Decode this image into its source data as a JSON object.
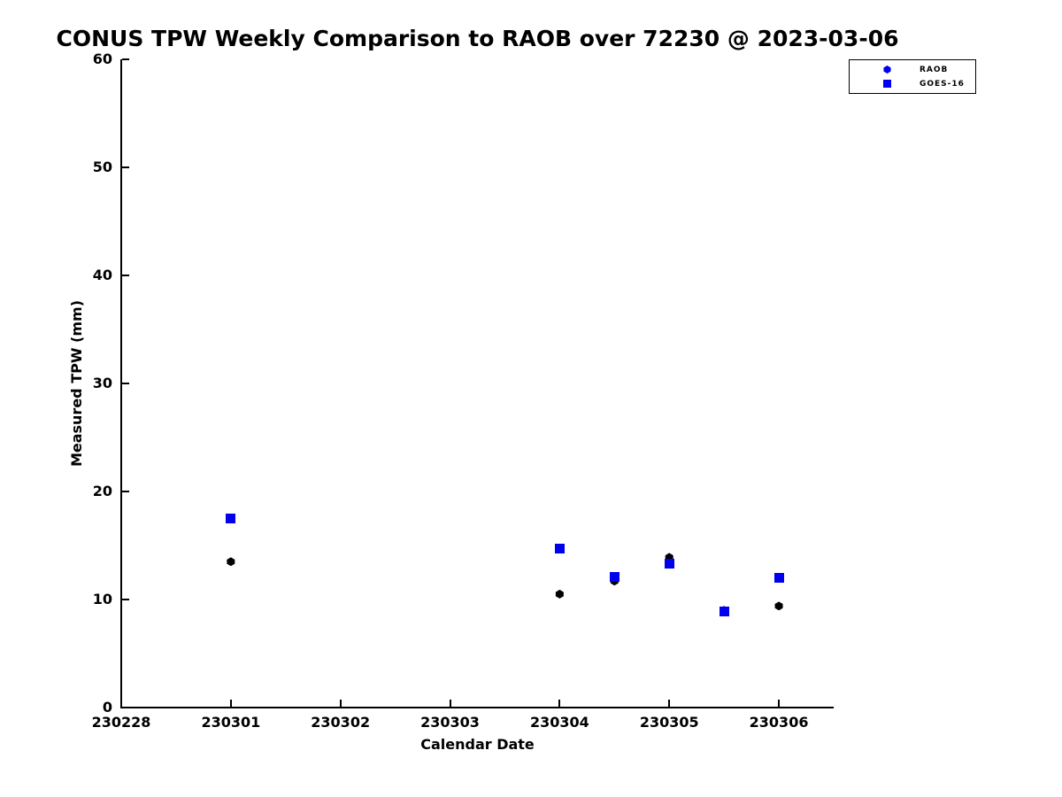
{
  "chart_data": {
    "type": "scatter",
    "title": "CONUS TPW Weekly Comparison to RAOB over 72230 @ 2023-03-06",
    "xlabel": "Calendar Date",
    "ylabel": "Measured TPW (mm)",
    "x_axis": {
      "tick_labels": [
        "230228",
        "230301",
        "230302",
        "230303",
        "230304",
        "230305",
        "230306"
      ],
      "tick_positions_days": [
        0,
        1,
        2,
        3,
        4,
        5,
        6
      ],
      "xlim_days": [
        0,
        6.5
      ]
    },
    "y_axis": {
      "tick_labels": [
        "0",
        "10",
        "20",
        "30",
        "40",
        "50",
        "60"
      ],
      "tick_values": [
        0,
        10,
        20,
        30,
        40,
        50,
        60
      ],
      "ylim": [
        0,
        60
      ]
    },
    "grid": "off",
    "series": [
      {
        "name": "RAOB",
        "marker": "hexagon",
        "color": "#000000",
        "points": [
          {
            "x_days": 1.0,
            "date": "230301",
            "y": 13.5
          },
          {
            "x_days": 4.0,
            "date": "230304",
            "y": 10.5
          },
          {
            "x_days": 4.5,
            "date": "230304.5",
            "y": 11.7
          },
          {
            "x_days": 5.0,
            "date": "230305",
            "y": 13.9
          },
          {
            "x_days": 5.5,
            "date": "230305.5",
            "y": 9.0
          },
          {
            "x_days": 6.0,
            "date": "230306",
            "y": 9.4
          }
        ]
      },
      {
        "name": "GOES-16",
        "marker": "square",
        "color": "#0000EE",
        "points": [
          {
            "x_days": 1.0,
            "date": "230301",
            "y": 17.5
          },
          {
            "x_days": 4.0,
            "date": "230304",
            "y": 14.7
          },
          {
            "x_days": 4.5,
            "date": "230304.5",
            "y": 12.1
          },
          {
            "x_days": 5.0,
            "date": "230305",
            "y": 13.3
          },
          {
            "x_days": 5.5,
            "date": "230305.5",
            "y": 8.9
          },
          {
            "x_days": 6.0,
            "date": "230306",
            "y": 12.0
          }
        ]
      }
    ],
    "legend": {
      "position": "top-right-outside",
      "marker_color": "#0000EE",
      "entries": [
        {
          "label": "RAOB",
          "marker": "hexagon"
        },
        {
          "label": "GOES-16",
          "marker": "square"
        }
      ]
    }
  }
}
